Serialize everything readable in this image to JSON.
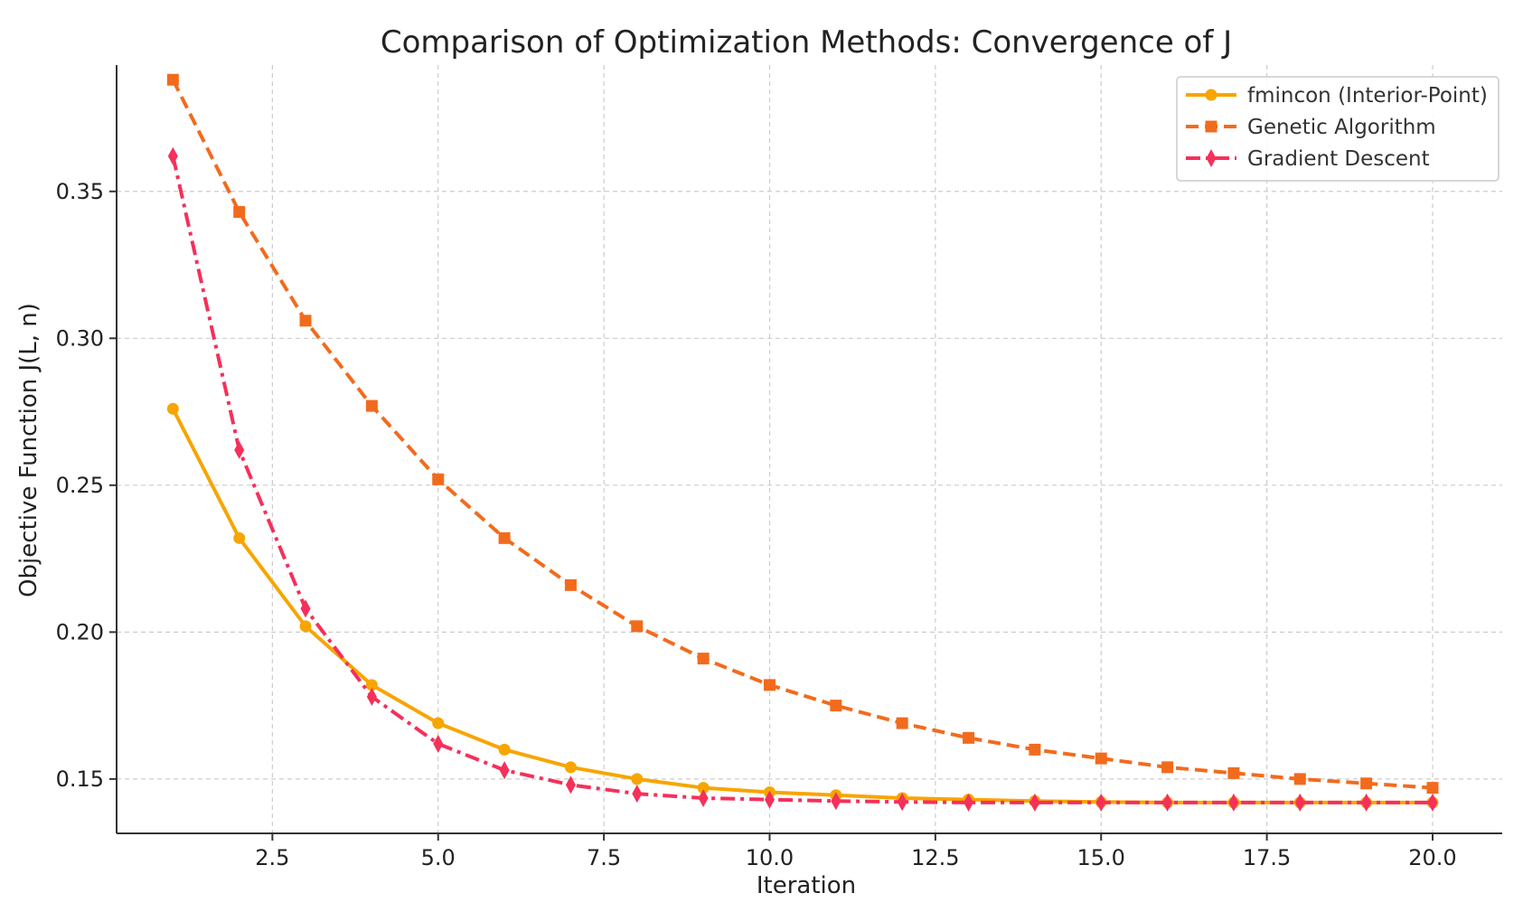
{
  "chart_data": {
    "type": "line",
    "title": "Comparison of Optimization Methods: Convergence of J",
    "xlabel": "Iteration",
    "ylabel": "Objective Function J(L, n)",
    "xlim": [
      0.15,
      21.05
    ],
    "ylim": [
      0.1315,
      0.393
    ],
    "x_ticks": [
      "2.5",
      "5.0",
      "7.5",
      "10.0",
      "12.5",
      "15.0",
      "17.5",
      "20.0"
    ],
    "x_tick_values": [
      2.5,
      5.0,
      7.5,
      10.0,
      12.5,
      15.0,
      17.5,
      20.0
    ],
    "y_ticks": [
      "0.15",
      "0.20",
      "0.25",
      "0.30",
      "0.35"
    ],
    "y_tick_values": [
      0.15,
      0.2,
      0.25,
      0.3,
      0.35
    ],
    "grid": true,
    "legend_position": "top-right",
    "x": [
      1,
      2,
      3,
      4,
      5,
      6,
      7,
      8,
      9,
      10,
      11,
      12,
      13,
      14,
      15,
      16,
      17,
      18,
      19,
      20
    ],
    "series": [
      {
        "name": "fmincon (Interior-Point)",
        "color": "#f7a500",
        "line_style": "solid",
        "marker": "circle",
        "values": [
          0.276,
          0.232,
          0.202,
          0.182,
          0.169,
          0.16,
          0.154,
          0.15,
          0.147,
          0.1455,
          0.1445,
          0.1435,
          0.143,
          0.1425,
          0.1422,
          0.142,
          0.142,
          0.142,
          0.142,
          0.142
        ]
      },
      {
        "name": "Genetic Algorithm",
        "color": "#f26b1d",
        "line_style": "dashed",
        "marker": "square",
        "values": [
          0.388,
          0.343,
          0.306,
          0.277,
          0.252,
          0.232,
          0.216,
          0.202,
          0.191,
          0.182,
          0.175,
          0.169,
          0.164,
          0.16,
          0.157,
          0.154,
          0.152,
          0.15,
          0.1485,
          0.147
        ]
      },
      {
        "name": "Gradient Descent",
        "color": "#f5305a",
        "line_style": "dashdot",
        "marker": "diamond",
        "values": [
          0.362,
          0.262,
          0.208,
          0.178,
          0.162,
          0.153,
          0.148,
          0.145,
          0.1435,
          0.143,
          0.1425,
          0.1422,
          0.142,
          0.142,
          0.142,
          0.142,
          0.142,
          0.142,
          0.142,
          0.142
        ]
      }
    ]
  }
}
